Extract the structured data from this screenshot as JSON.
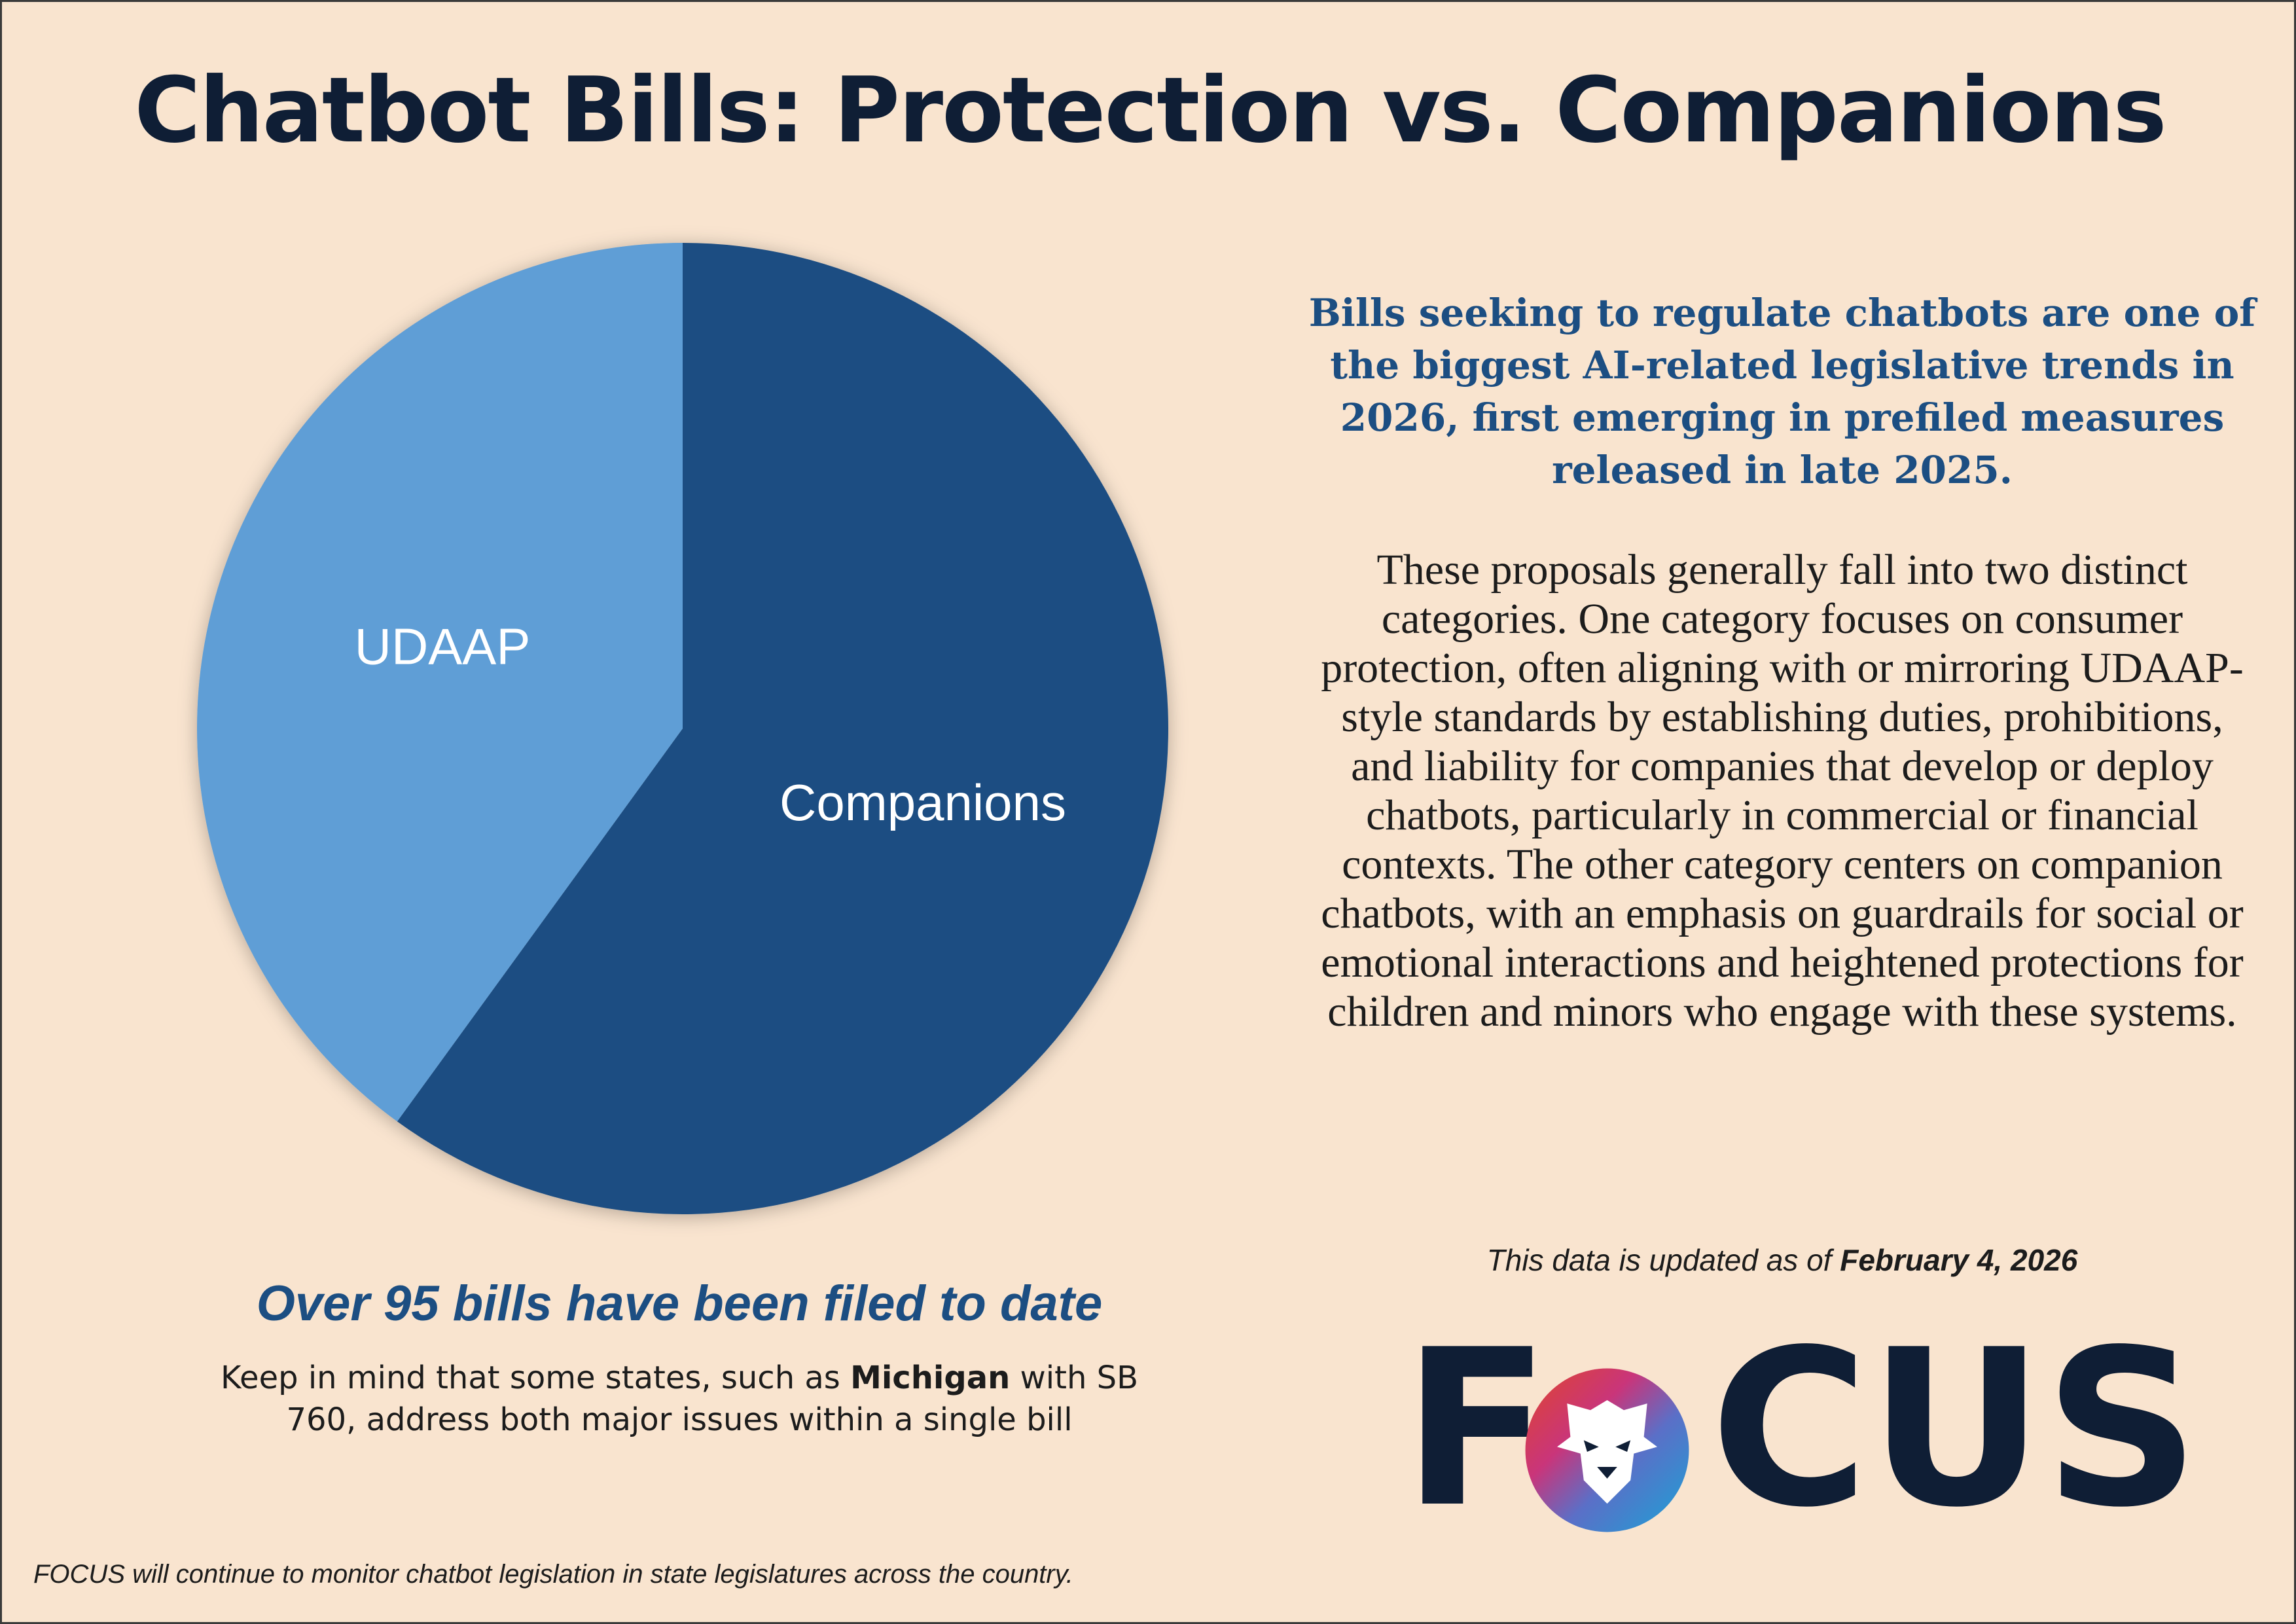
{
  "title": "Chatbot Bills: Protection vs. Companions",
  "chart_data": {
    "type": "pie",
    "slices": [
      {
        "label": "Companions",
        "value": 60,
        "color": "#1c4e82"
      },
      {
        "label": "UDAAP",
        "value": 40,
        "color": "#5f9ed6"
      }
    ]
  },
  "headline": "Bills seeking to regulate chatbots are one of the biggest AI-related legislative trends in 2026, first emerging in prefiled measures released in late 2025.",
  "body": "These proposals generally fall into two distinct categories. One category focuses on consumer protection, often aligning with or mirroring UDAAP-style standards by establishing duties, prohibitions, and liability for companies that develop or deploy chatbots, particularly in commercial or financial contexts. The other category centers on companion chatbots, with an emphasis on guardrails for social or emotional interactions and heightened protections for children and minors who engage with these systems.",
  "updated": {
    "prefix": "This data is updated as of ",
    "date": "February 4, 2026"
  },
  "bills_count": "Over 95 bills have been filed to date",
  "note": {
    "before": "Keep in mind that some states, such as ",
    "state": "Michigan",
    "after": " with SB 760, address both major issues within a single bill"
  },
  "logo": {
    "letter_f": "F",
    "rest": "CUS",
    "emblem": "lion-head-emblem"
  },
  "footer": "FOCUS will continue to monitor chatbot legislation in state legislatures across the country."
}
